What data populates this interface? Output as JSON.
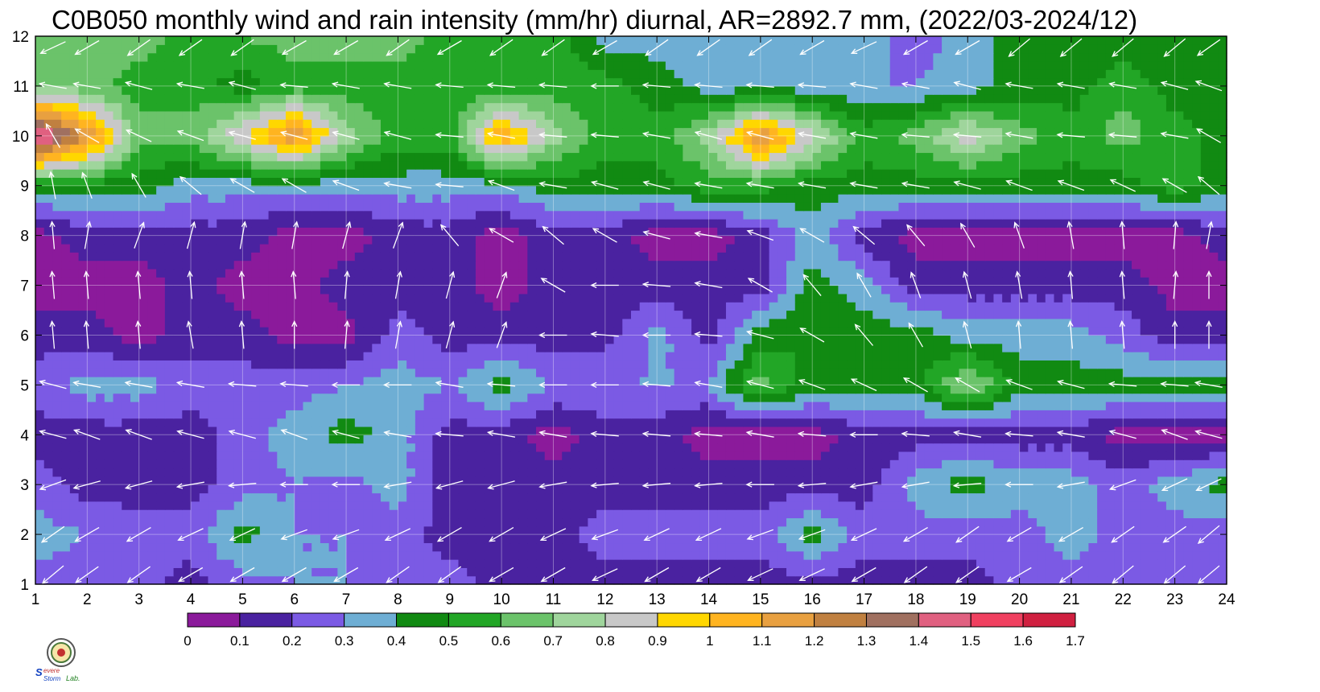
{
  "title": "C0B050 monthly wind and rain intensity (mm/hr) diurnal, AR=2892.7 mm, (2022/03-2024/12)",
  "logo": {
    "text": "Severe Storm Lab.",
    "icon": "seal-emblem-icon"
  },
  "chart_data": {
    "type": "heatmap",
    "x": [
      1,
      2,
      3,
      4,
      5,
      6,
      7,
      8,
      9,
      10,
      11,
      12,
      13,
      14,
      15,
      16,
      17,
      18,
      19,
      20,
      21,
      22,
      23,
      24
    ],
    "y": [
      1,
      2,
      3,
      4,
      5,
      6,
      7,
      8,
      9,
      10,
      11,
      12
    ],
    "xlim": [
      1,
      24
    ],
    "ylim": [
      1,
      12
    ],
    "xticks": [
      "1",
      "2",
      "3",
      "4",
      "5",
      "6",
      "7",
      "8",
      "9",
      "10",
      "11",
      "12",
      "13",
      "14",
      "15",
      "16",
      "17",
      "18",
      "19",
      "20",
      "21",
      "22",
      "23",
      "24"
    ],
    "yticks": [
      "1",
      "2",
      "3",
      "4",
      "5",
      "6",
      "7",
      "8",
      "9",
      "10",
      "11",
      "12"
    ],
    "grid": true,
    "colorbar": {
      "labels": [
        "0",
        "0.1",
        "0.2",
        "0.3",
        "0.4",
        "0.5",
        "0.6",
        "0.7",
        "0.8",
        "0.9",
        "1",
        "1.1",
        "1.2",
        "1.3",
        "1.4",
        "1.5",
        "1.6",
        "1.7"
      ],
      "colors": [
        "#8b1a9b",
        "#4a22a0",
        "#7b5ae4",
        "#6eaed4",
        "#118a12",
        "#22a626",
        "#6bc36a",
        "#9fd59c",
        "#c8c8c8",
        "#ffd700",
        "#ffb420",
        "#e8a040",
        "#c08040",
        "#a07060",
        "#e06080",
        "#f04060",
        "#d02040"
      ]
    },
    "z": [
      [
        0.25,
        0.25,
        0.25,
        0.15,
        0.25,
        0.3,
        0.3,
        0.3,
        0.25,
        0.15,
        0.15,
        0.15,
        0.15,
        0.15,
        0.15,
        0.15,
        0.15,
        0.15,
        0.15,
        0.25,
        0.25,
        0.25,
        0.25,
        0.25
      ],
      [
        0.35,
        0.3,
        0.25,
        0.25,
        0.45,
        0.3,
        0.3,
        0.25,
        0.15,
        0.15,
        0.15,
        0.25,
        0.25,
        0.25,
        0.25,
        0.45,
        0.25,
        0.25,
        0.25,
        0.25,
        0.35,
        0.25,
        0.25,
        0.25
      ],
      [
        0.25,
        0.15,
        0.15,
        0.15,
        0.25,
        0.3,
        0.25,
        0.35,
        0.15,
        0.15,
        0.15,
        0.15,
        0.15,
        0.15,
        0.15,
        0.15,
        0.15,
        0.35,
        0.45,
        0.35,
        0.35,
        0.25,
        0.35,
        0.45
      ],
      [
        0.15,
        0.15,
        0.15,
        0.15,
        0.25,
        0.35,
        0.45,
        0.35,
        0.15,
        0.15,
        0.05,
        0.15,
        0.15,
        0.05,
        0.05,
        0.05,
        0.15,
        0.15,
        0.15,
        0.15,
        0.15,
        0.05,
        0.05,
        0.05
      ],
      [
        0.25,
        0.35,
        0.35,
        0.25,
        0.25,
        0.25,
        0.3,
        0.35,
        0.3,
        0.45,
        0.3,
        0.3,
        0.3,
        0.3,
        0.65,
        0.45,
        0.45,
        0.45,
        0.75,
        0.45,
        0.45,
        0.45,
        0.45,
        0.45
      ],
      [
        0.15,
        0.15,
        0.05,
        0.15,
        0.15,
        0.05,
        0.05,
        0.25,
        0.15,
        0.15,
        0.15,
        0.15,
        0.35,
        0.15,
        0.45,
        0.5,
        0.45,
        0.45,
        0.35,
        0.35,
        0.35,
        0.25,
        0.15,
        0.15
      ],
      [
        0.05,
        0.05,
        0.05,
        0.15,
        0.05,
        0.05,
        0.15,
        0.15,
        0.15,
        0.05,
        0.15,
        0.15,
        0.15,
        0.15,
        0.15,
        0.45,
        0.35,
        0.15,
        0.15,
        0.15,
        0.15,
        0.15,
        0.05,
        0.05
      ],
      [
        0.05,
        0.15,
        0.15,
        0.15,
        0.15,
        0.05,
        0.05,
        0.15,
        0.15,
        0.05,
        0.15,
        0.15,
        0.05,
        0.05,
        0.15,
        0.35,
        0.15,
        0.05,
        0.05,
        0.05,
        0.05,
        0.05,
        0.05,
        0.15
      ],
      [
        0.45,
        0.45,
        0.45,
        0.35,
        0.35,
        0.35,
        0.35,
        0.35,
        0.35,
        0.35,
        0.45,
        0.45,
        0.45,
        0.55,
        0.55,
        0.45,
        0.45,
        0.45,
        0.45,
        0.45,
        0.45,
        0.45,
        0.55,
        0.45
      ],
      [
        1.6,
        1.2,
        0.65,
        0.65,
        0.9,
        1.2,
        0.75,
        0.55,
        0.55,
        1.1,
        0.75,
        0.55,
        0.55,
        0.75,
        1.2,
        0.85,
        0.55,
        0.65,
        0.85,
        0.65,
        0.55,
        0.65,
        0.55,
        0.45
      ],
      [
        0.65,
        0.65,
        0.55,
        0.55,
        0.45,
        0.55,
        0.55,
        0.55,
        0.5,
        0.55,
        0.55,
        0.55,
        0.45,
        0.35,
        0.35,
        0.35,
        0.3,
        0.3,
        0.35,
        0.45,
        0.45,
        0.55,
        0.45,
        0.45
      ],
      [
        0.65,
        0.65,
        0.65,
        0.55,
        0.6,
        0.65,
        0.65,
        0.65,
        0.55,
        0.5,
        0.55,
        0.35,
        0.35,
        0.35,
        0.35,
        0.35,
        0.35,
        0.25,
        0.35,
        0.45,
        0.45,
        0.45,
        0.45,
        0.45
      ]
    ],
    "wind_direction_deg": [
      [
        230,
        235,
        235,
        240,
        240,
        240,
        240,
        235,
        235,
        240,
        240,
        245,
        240,
        240,
        245,
        245,
        240,
        235,
        235,
        240,
        235,
        230,
        230,
        230
      ],
      [
        235,
        240,
        240,
        245,
        245,
        250,
        250,
        245,
        240,
        240,
        245,
        250,
        245,
        245,
        250,
        250,
        245,
        240,
        235,
        240,
        240,
        235,
        235,
        230
      ],
      [
        250,
        255,
        255,
        260,
        265,
        270,
        270,
        260,
        255,
        255,
        260,
        265,
        265,
        265,
        270,
        265,
        260,
        260,
        265,
        270,
        260,
        250,
        245,
        245
      ],
      [
        285,
        290,
        290,
        285,
        285,
        290,
        285,
        280,
        275,
        280,
        280,
        275,
        275,
        275,
        280,
        275,
        270,
        275,
        280,
        275,
        280,
        285,
        290,
        285
      ],
      [
        285,
        280,
        280,
        280,
        275,
        275,
        270,
        270,
        280,
        275,
        270,
        270,
        275,
        280,
        285,
        290,
        295,
        300,
        300,
        290,
        285,
        275,
        275,
        280
      ],
      [
        355,
        355,
        355,
        350,
        355,
        0,
        5,
        10,
        15,
        20,
        270,
        275,
        270,
        275,
        285,
        300,
        320,
        330,
        345,
        355,
        355,
        355,
        0,
        0
      ],
      [
        355,
        355,
        355,
        355,
        355,
        355,
        5,
        10,
        15,
        20,
        300,
        270,
        275,
        280,
        300,
        320,
        330,
        340,
        345,
        350,
        355,
        355,
        5,
        0
      ],
      [
        355,
        10,
        20,
        15,
        10,
        10,
        15,
        20,
        320,
        300,
        310,
        300,
        285,
        280,
        290,
        300,
        310,
        320,
        330,
        340,
        350,
        355,
        5,
        10
      ],
      [
        350,
        340,
        330,
        310,
        300,
        300,
        290,
        280,
        275,
        290,
        280,
        285,
        285,
        280,
        280,
        280,
        280,
        280,
        285,
        290,
        290,
        295,
        300,
        310
      ],
      [
        330,
        300,
        295,
        290,
        285,
        285,
        285,
        285,
        275,
        280,
        275,
        275,
        280,
        285,
        285,
        280,
        280,
        275,
        275,
        280,
        275,
        275,
        280,
        300
      ],
      [
        280,
        280,
        285,
        280,
        285,
        275,
        280,
        280,
        275,
        275,
        275,
        270,
        275,
        275,
        275,
        275,
        280,
        280,
        285,
        280,
        280,
        280,
        285,
        290
      ],
      [
        245,
        240,
        235,
        235,
        235,
        240,
        240,
        235,
        240,
        235,
        235,
        240,
        235,
        235,
        235,
        240,
        245,
        240,
        240,
        230,
        230,
        230,
        230,
        235
      ]
    ]
  }
}
